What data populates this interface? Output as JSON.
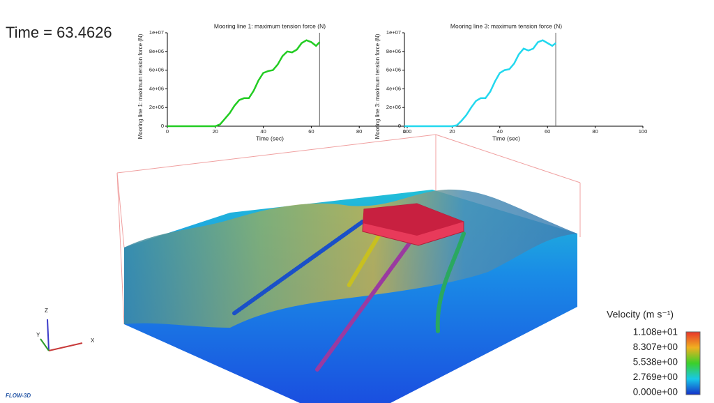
{
  "time_label": "Time = 63.4626",
  "chart_data": [
    {
      "type": "line",
      "title": "Mooring line 1: maximum tension force (N)",
      "x_label": "Time (sec)",
      "y_label": "Mooring line 1: maximum tension force (N)",
      "xlim": [
        0,
        100
      ],
      "xticks": [
        0,
        20,
        40,
        60,
        80,
        100
      ],
      "ylim": [
        0,
        10000000
      ],
      "yticks": [
        0,
        {
          "value": 2000000,
          "label": "2e+06"
        },
        {
          "value": 4000000,
          "label": "4e+06"
        },
        {
          "value": 6000000,
          "label": "6e+06"
        },
        {
          "value": 8000000,
          "label": "8e+06"
        },
        {
          "value": 10000000,
          "label": "1e+07"
        }
      ],
      "vline": 63.4626,
      "series": [
        {
          "name": "Mooring line 1",
          "color": "#22cc22",
          "x": [
            0,
            10,
            20,
            22,
            24,
            26,
            28,
            30,
            32,
            34,
            36,
            38,
            40,
            42,
            44,
            46,
            48,
            50,
            52,
            54,
            56,
            58,
            60,
            62,
            63.5
          ],
          "values": [
            0,
            0,
            0,
            200000,
            800000,
            1400000,
            2200000,
            2800000,
            3000000,
            3000000,
            3800000,
            4900000,
            5700000,
            5900000,
            6000000,
            6600000,
            7500000,
            8000000,
            7900000,
            8200000,
            8900000,
            9200000,
            9000000,
            8600000,
            9000000
          ]
        }
      ]
    },
    {
      "type": "line",
      "title": "Mooring line 3: maximum tension force (N)",
      "x_label": "Time (sec)",
      "y_label": "Mooring line 3: maximum tension force (N)",
      "xlim": [
        0,
        100
      ],
      "xticks": [
        0,
        20,
        40,
        60,
        80,
        100
      ],
      "ylim": [
        0,
        10000000
      ],
      "yticks": [
        0,
        {
          "value": 2000000,
          "label": "2e+06"
        },
        {
          "value": 4000000,
          "label": "4e+06"
        },
        {
          "value": 6000000,
          "label": "6e+06"
        },
        {
          "value": 8000000,
          "label": "8e+06"
        },
        {
          "value": 10000000,
          "label": "1e+07"
        }
      ],
      "vline": 63.4626,
      "series": [
        {
          "name": "Mooring line 3",
          "color": "#22d8ee",
          "x": [
            0,
            10,
            20,
            22,
            24,
            26,
            28,
            30,
            32,
            34,
            36,
            38,
            40,
            42,
            44,
            46,
            48,
            50,
            52,
            54,
            56,
            58,
            60,
            62,
            63.5
          ],
          "values": [
            0,
            0,
            0,
            100000,
            600000,
            1200000,
            2000000,
            2700000,
            3000000,
            3000000,
            3700000,
            4800000,
            5700000,
            6000000,
            6100000,
            6700000,
            7700000,
            8300000,
            8100000,
            8300000,
            9000000,
            9200000,
            8900000,
            8600000,
            8900000
          ]
        }
      ]
    }
  ],
  "colorbar": {
    "title": "Velocity (m s⁻¹)",
    "labels": [
      "1.108e+01",
      "8.307e+00",
      "5.538e+00",
      "2.769e+00",
      "0.000e+00"
    ]
  },
  "triad": {
    "z": "Z",
    "y": "Y",
    "x": "X"
  },
  "logo": "FLOW-3D"
}
